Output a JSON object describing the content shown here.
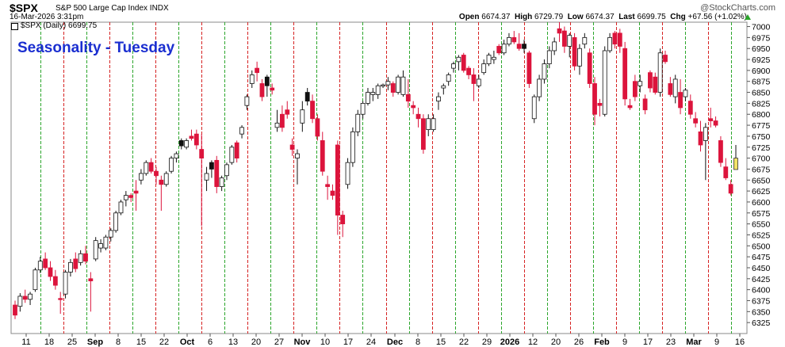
{
  "header": {
    "symbol": "$SPX",
    "name": "S&P 500 Large Cap Index INDX",
    "datetime": "16-Mar-2026 3:31pm",
    "source": "@StockCharts.com",
    "ohlc": {
      "open_label": "Open",
      "open": "6674.37",
      "high_label": "High",
      "high": "6729.79",
      "low_label": "Low",
      "low": "6674.37",
      "last_label": "Last",
      "last": "6699.75",
      "chg_label": "Chg",
      "chg": "+67.56 (+1.02%)"
    }
  },
  "chart_data": {
    "type": "candlestick",
    "legend": "$SPX (Daily) 6699.75",
    "annotation": "Seasonality - Tuesday",
    "ylim": [
      6300,
      7010
    ],
    "y_ticks": [
      6325,
      6350,
      6375,
      6400,
      6425,
      6450,
      6475,
      6500,
      6525,
      6550,
      6575,
      6600,
      6625,
      6650,
      6675,
      6700,
      6725,
      6750,
      6775,
      6800,
      6825,
      6850,
      6875,
      6900,
      6925,
      6950,
      6975,
      7000
    ],
    "x_tick_labels": [
      "11",
      "18",
      "25",
      "Sep",
      "8",
      "15",
      "22",
      "Oct",
      "6",
      "13",
      "20",
      "27",
      "Nov",
      "10",
      "17",
      "24",
      "Dec",
      "8",
      "15",
      "22",
      "29",
      "2026",
      "12",
      "20",
      "26",
      "Feb",
      "9",
      "17",
      "23",
      "Mar",
      "9",
      "16"
    ],
    "bold_tick_labels": [
      "Sep",
      "Oct",
      "Nov",
      "Dec",
      "2026",
      "Feb",
      "Mar"
    ],
    "colors": {
      "up": "#ffffff",
      "down": "#dc143c",
      "black": "#111111",
      "current": "#f2e366",
      "green_line": "#2aa52a",
      "red_line": "#d62020"
    },
    "candles": [
      [
        6342,
        6375,
        6333,
        6365,
        "r"
      ],
      [
        6362,
        6392,
        6350,
        6385,
        "u"
      ],
      [
        6385,
        6400,
        6370,
        6378,
        "r"
      ],
      [
        6378,
        6395,
        6365,
        6390,
        "u"
      ],
      [
        6400,
        6450,
        6395,
        6445,
        "u"
      ],
      [
        6445,
        6475,
        6438,
        6465,
        "u"
      ],
      [
        6470,
        6485,
        6445,
        6450,
        "r"
      ],
      [
        6450,
        6465,
        6420,
        6430,
        "r"
      ],
      [
        6430,
        6445,
        6400,
        6410,
        "r"
      ],
      [
        6380,
        6395,
        6345,
        6380,
        "r"
      ],
      [
        6390,
        6445,
        6380,
        6440,
        "u"
      ],
      [
        6440,
        6470,
        6430,
        6462,
        "u"
      ],
      [
        6470,
        6485,
        6440,
        6448,
        "r"
      ],
      [
        6462,
        6490,
        6455,
        6482,
        "u"
      ],
      [
        6482,
        6500,
        6458,
        6465,
        "r"
      ],
      [
        6420,
        6440,
        6350,
        6425,
        "r"
      ],
      [
        6470,
        6520,
        6465,
        6512,
        "u"
      ],
      [
        6505,
        6515,
        6485,
        6495,
        "u"
      ],
      [
        6495,
        6525,
        6490,
        6520,
        "u"
      ],
      [
        6520,
        6540,
        6510,
        6535,
        "u"
      ],
      [
        6535,
        6580,
        6530,
        6575,
        "u"
      ],
      [
        6575,
        6605,
        6570,
        6600,
        "u"
      ],
      [
        6605,
        6625,
        6590,
        6615,
        "u"
      ],
      [
        6615,
        6620,
        6600,
        6610,
        "r"
      ],
      [
        6625,
        6650,
        6580,
        6620,
        "r"
      ],
      [
        6650,
        6675,
        6640,
        6665,
        "u"
      ],
      [
        6665,
        6695,
        6660,
        6690,
        "u"
      ],
      [
        6690,
        6700,
        6665,
        6670,
        "r"
      ],
      [
        6670,
        6680,
        6640,
        6660,
        "r"
      ],
      [
        6650,
        6660,
        6580,
        6640,
        "r"
      ],
      [
        6640,
        6670,
        6635,
        6665,
        "u"
      ],
      [
        6670,
        6705,
        6665,
        6700,
        "u"
      ],
      [
        6700,
        6715,
        6690,
        6710,
        "u"
      ],
      [
        6740,
        6745,
        6720,
        6728,
        "b"
      ],
      [
        6725,
        6745,
        6720,
        6740,
        "u"
      ],
      [
        6745,
        6765,
        6740,
        6750,
        "r"
      ],
      [
        6755,
        6765,
        6720,
        6730,
        "r"
      ],
      [
        6700,
        6755,
        6545,
        6720,
        "r"
      ],
      [
        6650,
        6680,
        6625,
        6665,
        "u"
      ],
      [
        6675,
        6695,
        6655,
        6690,
        "b"
      ],
      [
        6695,
        6705,
        6620,
        6635,
        "r"
      ],
      [
        6635,
        6660,
        6625,
        6655,
        "u"
      ],
      [
        6660,
        6690,
        6650,
        6685,
        "u"
      ],
      [
        6690,
        6730,
        6685,
        6725,
        "u"
      ],
      [
        6735,
        6740,
        6690,
        6700,
        "r"
      ],
      [
        6755,
        6775,
        6745,
        6770,
        "u"
      ],
      [
        6820,
        6845,
        6810,
        6840,
        "u"
      ],
      [
        6870,
        6900,
        6860,
        6890,
        "u"
      ],
      [
        6905,
        6920,
        6875,
        6895,
        "r"
      ],
      [
        6870,
        6880,
        6830,
        6840,
        "r"
      ],
      [
        6885,
        6890,
        6840,
        6865,
        "b"
      ],
      [
        6860,
        6870,
        6845,
        6855,
        "r"
      ],
      [
        6780,
        6810,
        6760,
        6770,
        "u"
      ],
      [
        6770,
        6820,
        6760,
        6800,
        "r"
      ],
      [
        6800,
        6830,
        6790,
        6810,
        "r"
      ],
      [
        6730,
        6745,
        6705,
        6720,
        "r"
      ],
      [
        6700,
        6720,
        6640,
        6710,
        "u"
      ],
      [
        6780,
        6830,
        6760,
        6810,
        "u"
      ],
      [
        6850,
        6860,
        6820,
        6830,
        "b"
      ],
      [
        6830,
        6845,
        6780,
        6790,
        "r"
      ],
      [
        6790,
        6800,
        6740,
        6750,
        "r"
      ],
      [
        6740,
        6760,
        6660,
        6670,
        "r"
      ],
      [
        6640,
        6660,
        6605,
        6635,
        "r"
      ],
      [
        6625,
        6640,
        6605,
        6615,
        "r"
      ],
      [
        6730,
        6740,
        6525,
        6570,
        "r"
      ],
      [
        6570,
        6580,
        6520,
        6550,
        "r"
      ],
      [
        6640,
        6700,
        6630,
        6690,
        "u"
      ],
      [
        6690,
        6770,
        6680,
        6760,
        "u"
      ],
      [
        6760,
        6810,
        6750,
        6800,
        "u"
      ],
      [
        6800,
        6830,
        6790,
        6825,
        "u"
      ],
      [
        6825,
        6860,
        6820,
        6850,
        "u"
      ],
      [
        6850,
        6860,
        6830,
        6845,
        "u"
      ],
      [
        6845,
        6870,
        6835,
        6865,
        "u"
      ],
      [
        6865,
        6870,
        6860,
        6867,
        "u"
      ],
      [
        6867,
        6885,
        6855,
        6875,
        "u"
      ],
      [
        6870,
        6875,
        6840,
        6850,
        "r"
      ],
      [
        6850,
        6890,
        6845,
        6885,
        "u"
      ],
      [
        6885,
        6900,
        6840,
        6845,
        "u"
      ],
      [
        6845,
        6880,
        6815,
        6830,
        "r"
      ],
      [
        6820,
        6830,
        6800,
        6815,
        "r"
      ],
      [
        6800,
        6815,
        6770,
        6790,
        "r"
      ],
      [
        6790,
        6800,
        6710,
        6720,
        "r"
      ],
      [
        6790,
        6800,
        6750,
        6765,
        "u"
      ],
      [
        6765,
        6800,
        6760,
        6790,
        "u"
      ],
      [
        6830,
        6850,
        6810,
        6840,
        "u"
      ],
      [
        6860,
        6870,
        6845,
        6865,
        "u"
      ],
      [
        6875,
        6895,
        6865,
        6890,
        "u"
      ],
      [
        6905,
        6920,
        6895,
        6915,
        "u"
      ],
      [
        6920,
        6935,
        6900,
        6930,
        "u"
      ],
      [
        6935,
        6940,
        6895,
        6900,
        "r"
      ],
      [
        6905,
        6910,
        6880,
        6890,
        "r"
      ],
      [
        6890,
        6905,
        6830,
        6870,
        "r"
      ],
      [
        6865,
        6890,
        6860,
        6880,
        "u"
      ],
      [
        6895,
        6925,
        6890,
        6915,
        "u"
      ],
      [
        6915,
        6940,
        6910,
        6935,
        "u"
      ],
      [
        6925,
        6945,
        6915,
        6930,
        "u"
      ],
      [
        6955,
        6960,
        6935,
        6940,
        "r"
      ],
      [
        6940,
        6970,
        6935,
        6960,
        "u"
      ],
      [
        6960,
        6985,
        6955,
        6975,
        "u"
      ],
      [
        6975,
        6990,
        6960,
        6965,
        "r"
      ],
      [
        6960,
        6985,
        6945,
        6950,
        "r"
      ],
      [
        6950,
        6970,
        6940,
        6960,
        "b"
      ],
      [
        6940,
        6945,
        6860,
        6870,
        "r"
      ],
      [
        6790,
        6845,
        6780,
        6840,
        "u"
      ],
      [
        6840,
        6890,
        6830,
        6880,
        "u"
      ],
      [
        6880,
        6925,
        6870,
        6915,
        "u"
      ],
      [
        6915,
        6955,
        6905,
        6945,
        "u"
      ],
      [
        6945,
        6975,
        6935,
        6965,
        "u"
      ],
      [
        6985,
        7010,
        6965,
        6995,
        "r"
      ],
      [
        6990,
        7000,
        6940,
        6955,
        "r"
      ],
      [
        6955,
        6985,
        6930,
        6980,
        "u"
      ],
      [
        6975,
        6985,
        6900,
        6910,
        "r"
      ],
      [
        6910,
        6960,
        6890,
        6950,
        "u"
      ],
      [
        6960,
        6985,
        6950,
        6975,
        "u"
      ],
      [
        6940,
        6950,
        6860,
        6870,
        "r"
      ],
      [
        6870,
        6885,
        6775,
        6800,
        "r"
      ],
      [
        6820,
        6835,
        6795,
        6825,
        "r"
      ],
      [
        6800,
        6955,
        6795,
        6945,
        "u"
      ],
      [
        6945,
        6985,
        6940,
        6975,
        "u"
      ],
      [
        6985,
        6990,
        6950,
        6960,
        "r"
      ],
      [
        6985,
        6995,
        6940,
        6955,
        "r"
      ],
      [
        6950,
        6965,
        6820,
        6835,
        "r"
      ],
      [
        6820,
        6835,
        6810,
        6815,
        "r"
      ],
      [
        6875,
        6890,
        6830,
        6840,
        "r"
      ],
      [
        6875,
        6890,
        6850,
        6865,
        "u"
      ],
      [
        6835,
        6845,
        6800,
        6810,
        "r"
      ],
      [
        6860,
        6900,
        6850,
        6895,
        "r"
      ],
      [
        6885,
        6895,
        6845,
        6850,
        "r"
      ],
      [
        6850,
        6950,
        6840,
        6940,
        "u"
      ],
      [
        6935,
        6945,
        6915,
        6920,
        "r"
      ],
      [
        6870,
        6885,
        6840,
        6845,
        "r"
      ],
      [
        6840,
        6890,
        6825,
        6880,
        "u"
      ],
      [
        6850,
        6880,
        6800,
        6815,
        "r"
      ],
      [
        6840,
        6860,
        6830,
        6855,
        "u"
      ],
      [
        6830,
        6845,
        6790,
        6800,
        "r"
      ],
      [
        6790,
        6805,
        6770,
        6780,
        "r"
      ],
      [
        6760,
        6785,
        6715,
        6730,
        "r"
      ],
      [
        6740,
        6780,
        6650,
        6770,
        "u"
      ],
      [
        6790,
        6815,
        6770,
        6785,
        "r"
      ],
      [
        6785,
        6795,
        6770,
        6775,
        "r"
      ],
      [
        6740,
        6750,
        6680,
        6690,
        "r"
      ],
      [
        6680,
        6700,
        6650,
        6655,
        "r"
      ],
      [
        6620,
        6650,
        6615,
        6640,
        "r"
      ],
      [
        6674,
        6730,
        6674,
        6700,
        "c"
      ]
    ]
  }
}
